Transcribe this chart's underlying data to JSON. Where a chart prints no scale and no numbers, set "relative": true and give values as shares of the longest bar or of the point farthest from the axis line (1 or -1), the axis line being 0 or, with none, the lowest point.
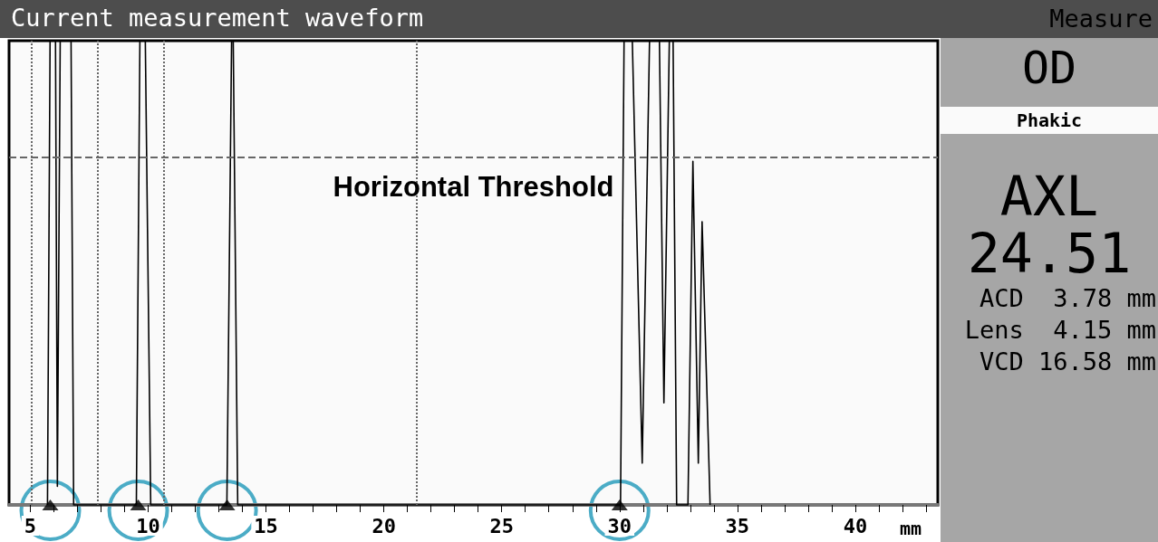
{
  "chart_data": {
    "type": "line",
    "title": "Current measurement waveform",
    "xlabel": "mm",
    "relative": true,
    "xlim": [
      4.1,
      43.5
    ],
    "xticks": [
      5,
      {
        "value": 6,
        "label": null
      },
      {
        "value": 7,
        "label": null
      },
      {
        "value": 8,
        "label": null
      },
      {
        "value": 9,
        "label": null
      },
      10,
      {
        "value": 11,
        "label": null
      },
      {
        "value": 12,
        "label": null
      },
      {
        "value": 13,
        "label": null
      },
      {
        "value": 14,
        "label": null
      },
      15,
      {
        "value": 16,
        "label": null
      },
      {
        "value": 17,
        "label": null
      },
      {
        "value": 18,
        "label": null
      },
      {
        "value": 19,
        "label": null
      },
      20,
      {
        "value": 21,
        "label": null
      },
      {
        "value": 22,
        "label": null
      },
      {
        "value": 23,
        "label": null
      },
      {
        "value": 24,
        "label": null
      },
      25,
      {
        "value": 26,
        "label": null
      },
      {
        "value": 27,
        "label": null
      },
      {
        "value": 28,
        "label": null
      },
      {
        "value": 29,
        "label": null
      },
      30,
      {
        "value": 31,
        "label": null
      },
      {
        "value": 32,
        "label": null
      },
      {
        "value": 33,
        "label": null
      },
      {
        "value": 34,
        "label": null
      },
      35,
      {
        "value": 36,
        "label": null
      },
      {
        "value": 37,
        "label": null
      },
      {
        "value": 38,
        "label": null
      },
      {
        "value": 39,
        "label": null
      },
      40,
      {
        "value": 41,
        "label": null
      },
      {
        "value": 42,
        "label": null
      },
      {
        "value": 43,
        "label": null
      }
    ],
    "series": [
      {
        "color": "#000000",
        "marker": "none",
        "line_style": "solid",
        "x": [
          5.73,
          5.84,
          6.07,
          6.15,
          6.27,
          6.73,
          6.84,
          9.5,
          9.65,
          9.88,
          10.11,
          13.34,
          13.54,
          13.61,
          13.8,
          30.04,
          30.19,
          30.54,
          30.96,
          31.27,
          31.69,
          31.88,
          32.11,
          32.27,
          32.42,
          32.9,
          33.11,
          33.34,
          33.5,
          33.84
        ],
        "values": [
          0,
          1,
          1,
          0.04,
          1,
          1,
          0,
          0,
          1,
          1,
          0,
          0,
          1,
          1,
          0,
          0,
          1,
          1,
          0.09,
          1,
          1,
          0.22,
          1,
          1,
          0,
          0,
          0.74,
          0.09,
          0.61,
          0
        ]
      },
      {
        "type": "scatter",
        "color": "#000000",
        "marker": "triangle",
        "x": [
          5.85,
          9.58,
          13.35,
          30.0
        ],
        "values": [
          0,
          0,
          0,
          0
        ]
      }
    ],
    "ref_lines": [
      {
        "axis": "y",
        "value": 0.75,
        "label": "Horizontal Threshold",
        "color": "#666666",
        "line_style": "dashed"
      },
      {
        "axis": "x",
        "value": 5.04,
        "label": null,
        "color": "#666666",
        "line_style": "dotted"
      },
      {
        "axis": "x",
        "value": 7.85,
        "label": null,
        "color": "#666666",
        "line_style": "dotted"
      },
      {
        "axis": "x",
        "value": 10.65,
        "label": null,
        "color": "#666666",
        "line_style": "dotted"
      },
      {
        "axis": "x",
        "value": 21.4,
        "label": null,
        "color": "#666666",
        "line_style": "dotted"
      }
    ],
    "grid": false,
    "annotations": [
      "Measure",
      "OD",
      "Phakic",
      "AXL",
      "24.51",
      "ACD  3.78 mm",
      "Lens  4.15 mm",
      "VCD 16.58 mm"
    ]
  }
}
